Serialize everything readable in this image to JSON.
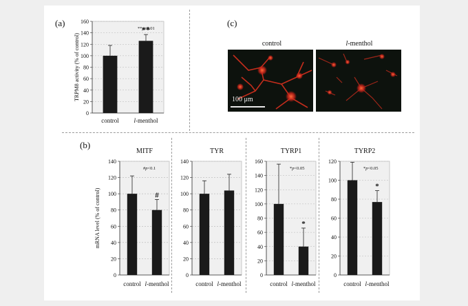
{
  "panel_labels": {
    "a": "(a)",
    "b": "(b)",
    "c": "(c)"
  },
  "micrograph": {
    "captions": [
      "control",
      "l-menthol"
    ],
    "scale_bar_label": "100 μm",
    "colors": {
      "background": "#0d120d",
      "cells": "#e0281a",
      "glow": "#ff5a2a"
    }
  },
  "chart_data": [
    {
      "type": "bar",
      "title": "",
      "categories": [
        "control",
        "l-menthol"
      ],
      "values": [
        100,
        126
      ],
      "errors": [
        18,
        11
      ],
      "annotations": [
        "",
        "**"
      ],
      "note": "**p<0.01",
      "ylabel": "TRPM8 activity (% of control)",
      "ylim": [
        0,
        160
      ],
      "yticks": [
        0,
        20,
        40,
        60,
        80,
        100,
        120,
        140,
        160
      ]
    },
    {
      "type": "bar",
      "title": "MITF",
      "categories": [
        "control",
        "l-menthol"
      ],
      "values": [
        100,
        80
      ],
      "errors": [
        22,
        13
      ],
      "annotations": [
        "",
        "#"
      ],
      "note": "#p<0.1",
      "ylabel": "mRNA level (% of control)",
      "ylim": [
        0,
        140
      ],
      "yticks": [
        0,
        20,
        40,
        60,
        80,
        100,
        120,
        140
      ]
    },
    {
      "type": "bar",
      "title": "TYR",
      "categories": [
        "control",
        "l-menthol"
      ],
      "values": [
        100,
        104
      ],
      "errors": [
        16,
        20
      ],
      "annotations": [
        "",
        ""
      ],
      "note": "",
      "ylabel": "",
      "ylim": [
        0,
        140
      ],
      "yticks": [
        0,
        20,
        40,
        60,
        80,
        100,
        120,
        140
      ]
    },
    {
      "type": "bar",
      "title": "TYRP1",
      "categories": [
        "control",
        "l-menthol"
      ],
      "values": [
        100,
        40
      ],
      "errors": [
        56,
        26
      ],
      "annotations": [
        "",
        "*"
      ],
      "note": "*p<0.05",
      "ylabel": "",
      "ylim": [
        0,
        160
      ],
      "yticks": [
        0,
        20,
        40,
        60,
        80,
        100,
        120,
        140,
        160
      ]
    },
    {
      "type": "bar",
      "title": "TYRP2",
      "categories": [
        "control",
        "l-menthol"
      ],
      "values": [
        100,
        77
      ],
      "errors": [
        19,
        12
      ],
      "annotations": [
        "",
        "*"
      ],
      "note": "*p<0.05",
      "ylabel": "",
      "ylim": [
        0,
        120
      ],
      "yticks": [
        0,
        20,
        40,
        60,
        80,
        100,
        120
      ]
    }
  ]
}
